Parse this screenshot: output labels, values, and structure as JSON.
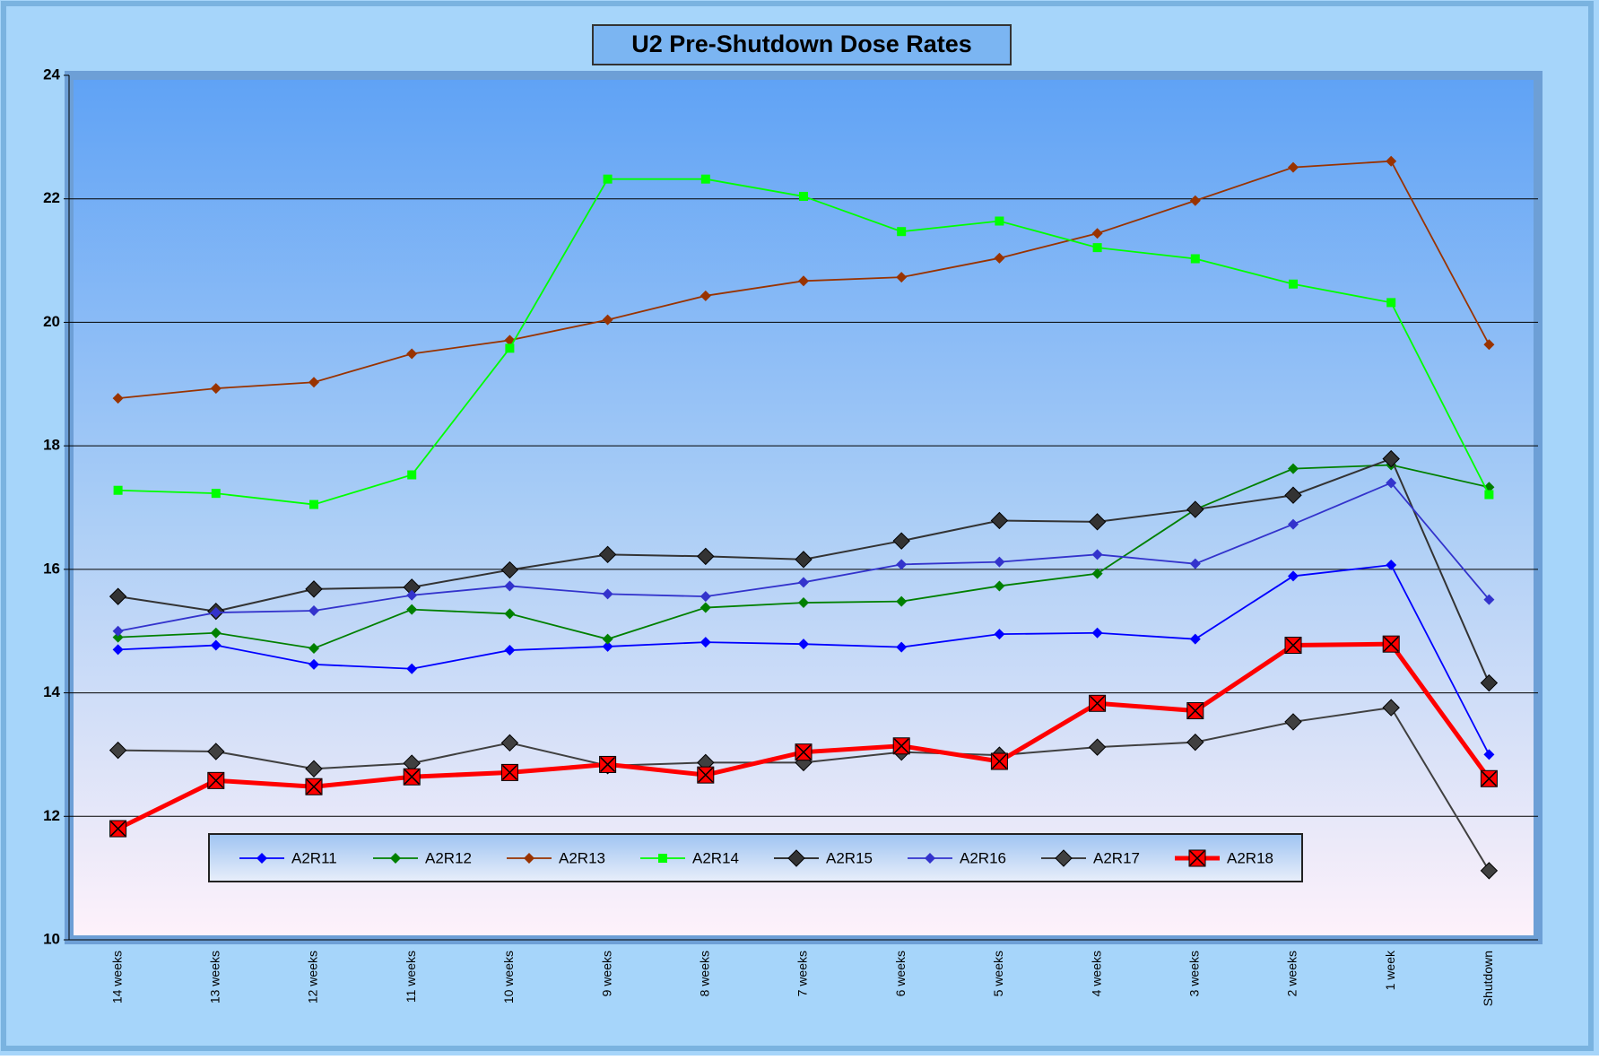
{
  "chart_data": {
    "type": "line",
    "title": "U2 Pre-Shutdown Dose Rates",
    "categories": [
      "14 weeks",
      "13 weeks",
      "12 weeks",
      "11 weeks",
      "10 weeks",
      "9 weeks",
      "8 weeks",
      "7 weeks",
      "6 weeks",
      "5 weeks",
      "4 weeks",
      "3 weeks",
      "2 weeks",
      "1 week",
      "Shutdown"
    ],
    "ylim": [
      10,
      24
    ],
    "yticks": [
      10,
      12,
      14,
      16,
      18,
      20,
      22,
      24
    ],
    "grid": true,
    "legend": "bottom",
    "series": [
      {
        "name": "A2R11",
        "color": "#0000ff",
        "marker": "diamond",
        "values": [
          14.7,
          14.77,
          14.46,
          14.39,
          14.69,
          14.75,
          14.82,
          14.79,
          14.74,
          14.95,
          14.97,
          14.87,
          15.89,
          16.07,
          13.0
        ]
      },
      {
        "name": "A2R12",
        "color": "#008000",
        "marker": "diamond",
        "values": [
          14.9,
          14.97,
          14.72,
          15.35,
          15.28,
          14.87,
          15.38,
          15.46,
          15.48,
          15.73,
          15.93,
          16.97,
          17.63,
          17.69,
          17.33
        ]
      },
      {
        "name": "A2R13",
        "color": "#993300",
        "marker": "diamond",
        "values": [
          18.77,
          18.93,
          19.03,
          19.49,
          19.71,
          20.04,
          20.43,
          20.67,
          20.73,
          21.04,
          21.44,
          21.97,
          22.51,
          22.61,
          19.64
        ]
      },
      {
        "name": "A2R14",
        "color": "#00ff00",
        "marker": "square",
        "values": [
          17.28,
          17.23,
          17.05,
          17.53,
          19.58,
          22.32,
          22.32,
          22.04,
          21.47,
          21.64,
          21.21,
          21.03,
          20.62,
          20.32,
          17.21
        ]
      },
      {
        "name": "A2R15",
        "color": "#333333",
        "marker": "bigdiamond",
        "values": [
          15.56,
          15.32,
          15.68,
          15.71,
          15.99,
          16.24,
          16.21,
          16.16,
          16.46,
          16.79,
          16.77,
          16.97,
          17.2,
          17.79,
          14.16
        ]
      },
      {
        "name": "A2R16",
        "color": "#3333cc",
        "marker": "diamond",
        "values": [
          15.0,
          15.3,
          15.33,
          15.58,
          15.73,
          15.6,
          15.56,
          15.79,
          16.08,
          16.12,
          16.24,
          16.09,
          16.73,
          17.4,
          15.51
        ]
      },
      {
        "name": "A2R17",
        "color": "#404040",
        "marker": "bigdiamond",
        "values": [
          13.07,
          13.05,
          12.77,
          12.86,
          13.19,
          12.82,
          12.87,
          12.87,
          13.04,
          12.99,
          13.12,
          13.2,
          13.53,
          13.76,
          11.12
        ]
      },
      {
        "name": "A2R18",
        "color": "#ff0000",
        "marker": "xsquare",
        "values": [
          11.8,
          12.58,
          12.48,
          12.64,
          12.71,
          12.84,
          12.67,
          13.04,
          13.14,
          12.89,
          13.83,
          13.71,
          14.77,
          14.79,
          12.61
        ]
      }
    ]
  }
}
